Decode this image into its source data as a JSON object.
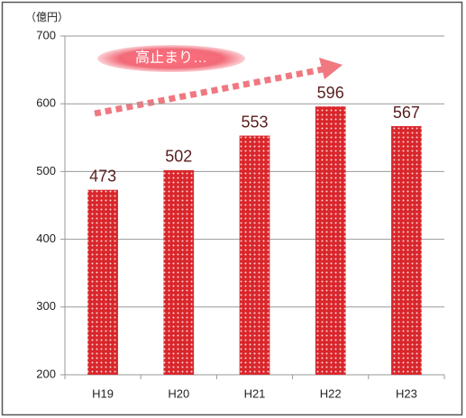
{
  "chart_data": {
    "type": "bar",
    "unit_label": "（億円）",
    "annotation": "高止まり…",
    "categories": [
      "H19",
      "H20",
      "H21",
      "H22",
      "H23"
    ],
    "values": [
      473,
      502,
      553,
      596,
      567
    ],
    "color": "#d9262b",
    "ylim": [
      200,
      700
    ],
    "yticks": [
      200,
      300,
      400,
      500,
      600,
      700
    ],
    "grid": true
  }
}
